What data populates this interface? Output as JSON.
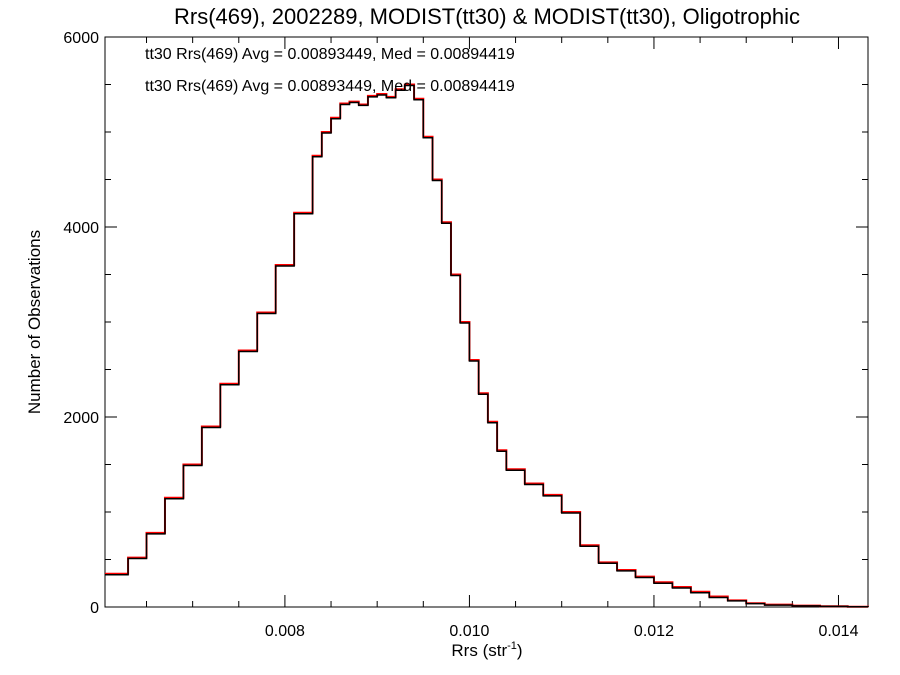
{
  "chart_data": {
    "type": "line",
    "title": "Rrs(469), 2002289, MODIST(tt30) & MODIST(tt30), Oligotrophic",
    "xlabel": "Rrs (str",
    "xlabel_sup": "-1",
    "xlabel_close": ")",
    "ylabel": "Number of Observations",
    "xlim": [
      0.00605,
      0.01432
    ],
    "ylim": [
      0,
      6000
    ],
    "x_ticks": [
      {
        "value": 0.008,
        "label": "0.008"
      },
      {
        "value": 0.01,
        "label": "0.010"
      },
      {
        "value": 0.012,
        "label": "0.012"
      },
      {
        "value": 0.014,
        "label": "0.014"
      }
    ],
    "x_minor_step": 0.0005,
    "y_ticks": [
      {
        "value": 0,
        "label": "0"
      },
      {
        "value": 2000,
        "label": "2000"
      },
      {
        "value": 4000,
        "label": "4000"
      },
      {
        "value": 6000,
        "label": "6000"
      }
    ],
    "y_minor_step": 500,
    "grid": false,
    "annotations": [
      {
        "text": "tt30 Rrs(469) Avg = 0.00893449, Med = 0.00894419",
        "color": "#000000"
      },
      {
        "text": "tt30 Rrs(469) Avg = 0.00893449, Med = 0.00894419",
        "color": "#ff0000"
      }
    ],
    "series": [
      {
        "color": "#ff0000",
        "step": true,
        "x": [
          0.00605,
          0.0063,
          0.0065,
          0.0067,
          0.0069,
          0.0071,
          0.0073,
          0.0075,
          0.0077,
          0.0079,
          0.0081,
          0.0083,
          0.0084,
          0.0085,
          0.0086,
          0.0087,
          0.0088,
          0.0089,
          0.009,
          0.0091,
          0.0092,
          0.0093,
          0.0094,
          0.0095,
          0.0096,
          0.0097,
          0.0098,
          0.0099,
          0.01,
          0.0101,
          0.0102,
          0.0103,
          0.0104,
          0.0106,
          0.0108,
          0.011,
          0.0112,
          0.0114,
          0.0116,
          0.0118,
          0.012,
          0.0122,
          0.0124,
          0.0126,
          0.0128,
          0.013,
          0.0132,
          0.0135,
          0.0138,
          0.0141,
          0.01432
        ],
        "values": [
          350,
          520,
          780,
          1150,
          1500,
          1900,
          2350,
          2700,
          3100,
          3600,
          4150,
          4750,
          5000,
          5150,
          5300,
          5320,
          5290,
          5380,
          5400,
          5370,
          5450,
          5500,
          5350,
          4950,
          4500,
          4050,
          3500,
          3000,
          2600,
          2250,
          1950,
          1650,
          1450,
          1300,
          1180,
          1000,
          650,
          470,
          390,
          320,
          260,
          210,
          160,
          110,
          70,
          40,
          25,
          15,
          8,
          3,
          2
        ]
      },
      {
        "color": "#000000",
        "step": true,
        "x": [
          0.00605,
          0.0063,
          0.0065,
          0.0067,
          0.0069,
          0.0071,
          0.0073,
          0.0075,
          0.0077,
          0.0079,
          0.0081,
          0.0083,
          0.0084,
          0.0085,
          0.0086,
          0.0087,
          0.0088,
          0.0089,
          0.009,
          0.0091,
          0.0092,
          0.0093,
          0.0094,
          0.0095,
          0.0096,
          0.0097,
          0.0098,
          0.0099,
          0.01,
          0.0101,
          0.0102,
          0.0103,
          0.0104,
          0.0106,
          0.0108,
          0.011,
          0.0112,
          0.0114,
          0.0116,
          0.0118,
          0.012,
          0.0122,
          0.0124,
          0.0126,
          0.0128,
          0.013,
          0.0132,
          0.0135,
          0.0138,
          0.0141,
          0.01432
        ],
        "values": [
          340,
          510,
          770,
          1140,
          1490,
          1890,
          2340,
          2690,
          3090,
          3590,
          4140,
          4740,
          4990,
          5140,
          5290,
          5310,
          5280,
          5370,
          5390,
          5360,
          5440,
          5490,
          5340,
          4940,
          4490,
          4040,
          3490,
          2990,
          2590,
          2240,
          1940,
          1640,
          1440,
          1290,
          1170,
          990,
          640,
          460,
          380,
          310,
          250,
          200,
          150,
          100,
          65,
          35,
          20,
          12,
          6,
          2,
          1
        ]
      }
    ]
  }
}
